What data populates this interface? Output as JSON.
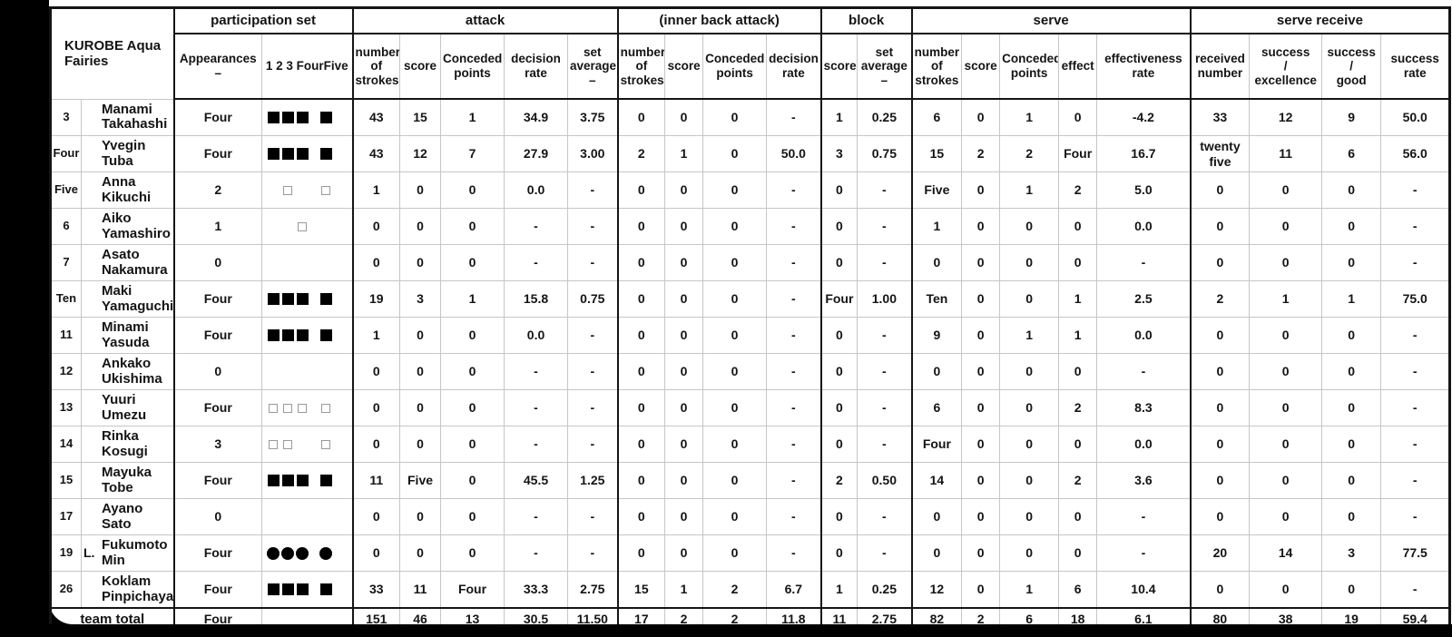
{
  "team": {
    "name": "KUROBE Aqua\nFairies",
    "total_label": "team total"
  },
  "headers": {
    "group_participation": "participation set",
    "group_attack": "attack",
    "group_inner": "(inner back attack)",
    "group_block": "block",
    "group_serve": "serve",
    "group_receive": "serve receive",
    "appearances": "Appearances\n–",
    "set_slots": "1  2  3 FourFive",
    "strokes": "number\nof\nstrokes",
    "score": "score",
    "conceded": "Conceded\npoints",
    "decision": "decision\nrate",
    "set_average": "set\naverage\n–",
    "effect": "effect",
    "effectiveness": "effectiveness\nrate",
    "received": "received\nnumber",
    "success_excellence": "success\n/\nexcellence",
    "success_good": "success\n/\ngood",
    "success_rate": "success\nrate"
  },
  "players": [
    {
      "num": "3",
      "libero": "",
      "name": "Manami\nTakahashi",
      "appearances": "Four",
      "sets": "SSSS.",
      "attack": [
        "43",
        "15",
        "1",
        "34.9",
        "3.75"
      ],
      "inner": [
        "0",
        "0",
        "0",
        "-"
      ],
      "block": [
        "1",
        "0.25"
      ],
      "serve": [
        "6",
        "0",
        "1",
        "0",
        "-4.2"
      ],
      "receive": [
        "33",
        "12",
        "9",
        "50.0"
      ]
    },
    {
      "num": "Four",
      "libero": "",
      "name": "Yvegin\nTuba",
      "appearances": "Four",
      "sets": "SSSS.",
      "attack": [
        "43",
        "12",
        "7",
        "27.9",
        "3.00"
      ],
      "inner": [
        "2",
        "1",
        "0",
        "50.0"
      ],
      "block": [
        "3",
        "0.75"
      ],
      "serve": [
        "15",
        "2",
        "2",
        "Four",
        "16.7"
      ],
      "receive": [
        "twenty\nfive",
        "11",
        "6",
        "56.0"
      ]
    },
    {
      "num": "Five",
      "libero": "",
      "name": "Anna\nKikuchi",
      "appearances": "2",
      "sets": ".s.s.",
      "attack": [
        "1",
        "0",
        "0",
        "0.0",
        "-"
      ],
      "inner": [
        "0",
        "0",
        "0",
        "-"
      ],
      "block": [
        "0",
        "-"
      ],
      "serve": [
        "Five",
        "0",
        "1",
        "2",
        "5.0"
      ],
      "receive": [
        "0",
        "0",
        "0",
        "-"
      ]
    },
    {
      "num": "6",
      "libero": "",
      "name": "Aiko\nYamashiro",
      "appearances": "1",
      "sets": "..s..",
      "attack": [
        "0",
        "0",
        "0",
        "-",
        "-"
      ],
      "inner": [
        "0",
        "0",
        "0",
        "-"
      ],
      "block": [
        "0",
        "-"
      ],
      "serve": [
        "1",
        "0",
        "0",
        "0",
        "0.0"
      ],
      "receive": [
        "0",
        "0",
        "0",
        "-"
      ]
    },
    {
      "num": "7",
      "libero": "",
      "name": "Asato\nNakamura",
      "appearances": "0",
      "sets": ".....",
      "attack": [
        "0",
        "0",
        "0",
        "-",
        "-"
      ],
      "inner": [
        "0",
        "0",
        "0",
        "-"
      ],
      "block": [
        "0",
        "-"
      ],
      "serve": [
        "0",
        "0",
        "0",
        "0",
        "-"
      ],
      "receive": [
        "0",
        "0",
        "0",
        "-"
      ]
    },
    {
      "num": "Ten",
      "libero": "",
      "name": "Maki\nYamaguchi",
      "appearances": "Four",
      "sets": "SSSS.",
      "attack": [
        "19",
        "3",
        "1",
        "15.8",
        "0.75"
      ],
      "inner": [
        "0",
        "0",
        "0",
        "-"
      ],
      "block": [
        "Four",
        "1.00"
      ],
      "serve": [
        "Ten",
        "0",
        "0",
        "1",
        "2.5"
      ],
      "receive": [
        "2",
        "1",
        "1",
        "75.0"
      ]
    },
    {
      "num": "11",
      "libero": "",
      "name": "Minami\nYasuda",
      "appearances": "Four",
      "sets": "SSSS.",
      "attack": [
        "1",
        "0",
        "0",
        "0.0",
        "-"
      ],
      "inner": [
        "0",
        "0",
        "0",
        "-"
      ],
      "block": [
        "0",
        "-"
      ],
      "serve": [
        "9",
        "0",
        "1",
        "1",
        "0.0"
      ],
      "receive": [
        "0",
        "0",
        "0",
        "-"
      ]
    },
    {
      "num": "12",
      "libero": "",
      "name": "Ankako\nUkishima",
      "appearances": "0",
      "sets": ".....",
      "attack": [
        "0",
        "0",
        "0",
        "-",
        "-"
      ],
      "inner": [
        "0",
        "0",
        "0",
        "-"
      ],
      "block": [
        "0",
        "-"
      ],
      "serve": [
        "0",
        "0",
        "0",
        "0",
        "-"
      ],
      "receive": [
        "0",
        "0",
        "0",
        "-"
      ]
    },
    {
      "num": "13",
      "libero": "",
      "name": "Yuuri\nUmezu",
      "appearances": "Four",
      "sets": "ssss.",
      "attack": [
        "0",
        "0",
        "0",
        "-",
        "-"
      ],
      "inner": [
        "0",
        "0",
        "0",
        "-"
      ],
      "block": [
        "0",
        "-"
      ],
      "serve": [
        "6",
        "0",
        "0",
        "2",
        "8.3"
      ],
      "receive": [
        "0",
        "0",
        "0",
        "-"
      ]
    },
    {
      "num": "14",
      "libero": "",
      "name": "Rinka\nKosugi",
      "appearances": "3",
      "sets": "ss.s.",
      "attack": [
        "0",
        "0",
        "0",
        "-",
        "-"
      ],
      "inner": [
        "0",
        "0",
        "0",
        "-"
      ],
      "block": [
        "0",
        "-"
      ],
      "serve": [
        "Four",
        "0",
        "0",
        "0",
        "0.0"
      ],
      "receive": [
        "0",
        "0",
        "0",
        "-"
      ]
    },
    {
      "num": "15",
      "libero": "",
      "name": "Mayuka\nTobe",
      "appearances": "Four",
      "sets": "SSSS.",
      "attack": [
        "11",
        "Five",
        "0",
        "45.5",
        "1.25"
      ],
      "inner": [
        "0",
        "0",
        "0",
        "-"
      ],
      "block": [
        "2",
        "0.50"
      ],
      "serve": [
        "14",
        "0",
        "0",
        "2",
        "3.6"
      ],
      "receive": [
        "0",
        "0",
        "0",
        "-"
      ]
    },
    {
      "num": "17",
      "libero": "",
      "name": "Ayano\nSato",
      "appearances": "0",
      "sets": ".....",
      "attack": [
        "0",
        "0",
        "0",
        "-",
        "-"
      ],
      "inner": [
        "0",
        "0",
        "0",
        "-"
      ],
      "block": [
        "0",
        "-"
      ],
      "serve": [
        "0",
        "0",
        "0",
        "0",
        "-"
      ],
      "receive": [
        "0",
        "0",
        "0",
        "-"
      ]
    },
    {
      "num": "19",
      "libero": "L.",
      "name": "Fukumoto\nMin",
      "appearances": "Four",
      "sets": "CCCC.",
      "attack": [
        "0",
        "0",
        "0",
        "-",
        "-"
      ],
      "inner": [
        "0",
        "0",
        "0",
        "-"
      ],
      "block": [
        "0",
        "-"
      ],
      "serve": [
        "0",
        "0",
        "0",
        "0",
        "-"
      ],
      "receive": [
        "20",
        "14",
        "3",
        "77.5"
      ]
    },
    {
      "num": "26",
      "libero": "",
      "name": "Koklam\nPinpichaya",
      "appearances": "Four",
      "sets": "SSSS.",
      "attack": [
        "33",
        "11",
        "Four",
        "33.3",
        "2.75"
      ],
      "inner": [
        "15",
        "1",
        "2",
        "6.7"
      ],
      "block": [
        "1",
        "0.25"
      ],
      "serve": [
        "12",
        "0",
        "1",
        "6",
        "10.4"
      ],
      "receive": [
        "0",
        "0",
        "0",
        "-"
      ]
    }
  ],
  "total": {
    "appearances": "Four",
    "attack": [
      "151",
      "46",
      "13",
      "30.5",
      "11.50"
    ],
    "inner": [
      "17",
      "2",
      "2",
      "11.8"
    ],
    "block": [
      "11",
      "2.75"
    ],
    "serve": [
      "82",
      "2",
      "6",
      "18",
      "6.1"
    ],
    "receive": [
      "80",
      "38",
      "19",
      "59.4"
    ]
  }
}
